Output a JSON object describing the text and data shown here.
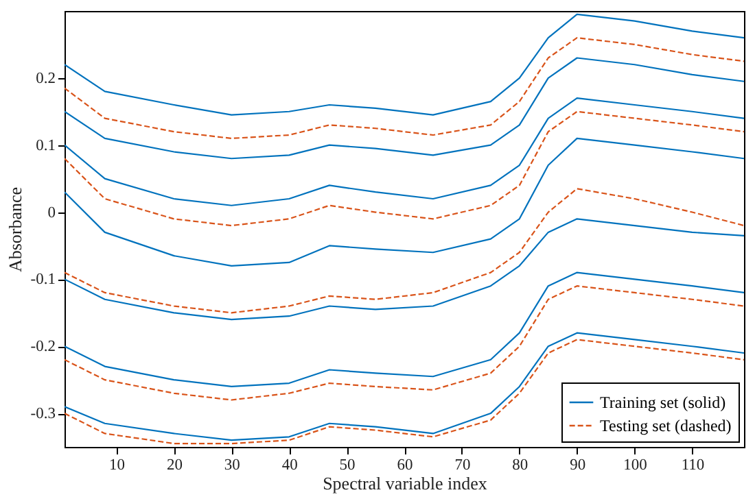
{
  "chart_data": {
    "type": "line",
    "xlabel": "Spectral variable index",
    "ylabel": "Absorbance",
    "x": [
      1,
      8,
      20,
      30,
      40,
      47,
      55,
      65,
      75,
      80,
      85,
      90,
      100,
      110,
      119
    ],
    "xlim": [
      1,
      119
    ],
    "xticks": [
      10,
      20,
      30,
      40,
      50,
      60,
      70,
      80,
      90,
      100,
      110
    ],
    "ylim": [
      -0.35,
      0.3
    ],
    "yticks": [
      -0.3,
      -0.2,
      -0.1,
      0,
      0.1,
      0.2
    ],
    "grid": false,
    "legend": "bottom right",
    "marker": "none",
    "series": [
      {
        "name": "Training set (solid)",
        "color": "#0072bd",
        "line_style": "solid",
        "values": [
          0.22,
          0.18,
          0.16,
          0.145,
          0.15,
          0.16,
          0.155,
          0.145,
          0.165,
          0.2,
          0.26,
          0.295,
          0.285,
          0.27,
          0.26
        ]
      },
      {
        "color": "#0072bd",
        "line_style": "solid",
        "values": [
          0.15,
          0.11,
          0.09,
          0.08,
          0.085,
          0.1,
          0.095,
          0.085,
          0.1,
          0.13,
          0.2,
          0.23,
          0.22,
          0.205,
          0.195
        ]
      },
      {
        "color": "#0072bd",
        "line_style": "solid",
        "values": [
          0.1,
          0.05,
          0.02,
          0.01,
          0.02,
          0.04,
          0.03,
          0.02,
          0.04,
          0.07,
          0.14,
          0.17,
          0.16,
          0.15,
          0.14
        ]
      },
      {
        "color": "#0072bd",
        "line_style": "solid",
        "values": [
          0.03,
          -0.03,
          -0.065,
          -0.08,
          -0.075,
          -0.05,
          -0.055,
          -0.06,
          -0.04,
          -0.01,
          0.07,
          0.11,
          0.1,
          0.09,
          0.08
        ]
      },
      {
        "color": "#0072bd",
        "line_style": "solid",
        "values": [
          -0.1,
          -0.13,
          -0.15,
          -0.16,
          -0.155,
          -0.14,
          -0.145,
          -0.14,
          -0.11,
          -0.08,
          -0.03,
          -0.01,
          -0.02,
          -0.03,
          -0.035
        ]
      },
      {
        "color": "#0072bd",
        "line_style": "solid",
        "values": [
          -0.2,
          -0.23,
          -0.25,
          -0.26,
          -0.255,
          -0.235,
          -0.24,
          -0.245,
          -0.22,
          -0.18,
          -0.11,
          -0.09,
          -0.1,
          -0.11,
          -0.12
        ]
      },
      {
        "color": "#0072bd",
        "line_style": "solid",
        "values": [
          -0.29,
          -0.315,
          -0.33,
          -0.34,
          -0.335,
          -0.315,
          -0.32,
          -0.33,
          -0.3,
          -0.26,
          -0.2,
          -0.18,
          -0.19,
          -0.2,
          -0.21
        ]
      },
      {
        "name": "Testing set (dashed)",
        "color": "#d95319",
        "line_style": "dashed",
        "values": [
          0.185,
          0.14,
          0.12,
          0.11,
          0.115,
          0.13,
          0.125,
          0.115,
          0.13,
          0.165,
          0.23,
          0.26,
          0.25,
          0.235,
          0.225
        ]
      },
      {
        "color": "#d95319",
        "line_style": "dashed",
        "values": [
          0.08,
          0.02,
          -0.01,
          -0.02,
          -0.01,
          0.01,
          0,
          -0.01,
          0.01,
          0.04,
          0.12,
          0.15,
          0.14,
          0.13,
          0.12
        ]
      },
      {
        "color": "#d95319",
        "line_style": "dashed",
        "values": [
          -0.09,
          -0.12,
          -0.14,
          -0.15,
          -0.14,
          -0.125,
          -0.13,
          -0.12,
          -0.09,
          -0.06,
          0,
          0.035,
          0.02,
          0,
          -0.02
        ]
      },
      {
        "color": "#d95319",
        "line_style": "dashed",
        "values": [
          -0.22,
          -0.25,
          -0.27,
          -0.28,
          -0.27,
          -0.255,
          -0.26,
          -0.265,
          -0.24,
          -0.2,
          -0.13,
          -0.11,
          -0.12,
          -0.13,
          -0.14
        ]
      },
      {
        "color": "#d95319",
        "line_style": "dashed",
        "values": [
          -0.3,
          -0.33,
          -0.345,
          -0.345,
          -0.34,
          -0.32,
          -0.325,
          -0.335,
          -0.31,
          -0.27,
          -0.21,
          -0.19,
          -0.2,
          -0.21,
          -0.22
        ]
      }
    ]
  }
}
